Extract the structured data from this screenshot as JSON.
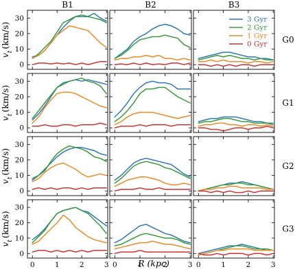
{
  "chart_data": {
    "type": "line",
    "layout": "grid",
    "column_titles": [
      "B1",
      "B2",
      "B3"
    ],
    "row_labels": [
      "G0",
      "G1",
      "G2",
      "G3"
    ],
    "xlabel": "R (kpc)",
    "ylabel": "v_t (km/s)",
    "xlim": [
      -0.2,
      3.05
    ],
    "ylim": [
      -3,
      35
    ],
    "xticks": [
      0,
      1,
      2,
      3
    ],
    "yticks": [
      0,
      10,
      20,
      30
    ],
    "legend": {
      "placement": "top-right of panel B3/G0",
      "entries": [
        "3 Gyr",
        "2 Gyr",
        "1 Gyr",
        "0 Gyr"
      ]
    },
    "series_colors": {
      "3 Gyr": "#2f78b8",
      "2 Gyr": "#3a9b3a",
      "1 Gyr": "#f08a24",
      "0 Gyr": "#d3302f"
    },
    "x": [
      0.0,
      0.25,
      0.5,
      0.75,
      1.0,
      1.25,
      1.5,
      1.75,
      2.0,
      2.25,
      2.5,
      2.75,
      3.0
    ],
    "panels": [
      {
        "row": "G0",
        "col": "B1",
        "series": [
          {
            "name": "3 Gyr",
            "values": [
              5,
              6,
              9,
              14,
              19,
              24,
              28,
              31,
              31,
              31,
              33,
              30,
              28
            ]
          },
          {
            "name": "2 Gyr",
            "values": [
              4,
              7,
              11,
              15,
              21,
              27,
              29,
              31,
              32,
              31,
              30,
              29,
              27
            ]
          },
          {
            "name": "1 Gyr",
            "values": [
              4,
              6,
              9,
              14,
              19,
              22,
              25,
              24,
              23,
              22,
              18,
              14,
              11
            ]
          },
          {
            "name": "0 Gyr",
            "values": [
              0,
              1,
              1,
              0.5,
              1,
              0.5,
              1,
              0,
              1,
              0,
              1,
              2,
              2
            ]
          }
        ]
      },
      {
        "row": "G0",
        "col": "B2",
        "series": [
          {
            "name": "3 Gyr",
            "values": [
              4,
              7,
              10,
              15,
              18,
              20,
              23,
              25,
              26,
              25,
              23,
              20,
              19
            ]
          },
          {
            "name": "2 Gyr",
            "values": [
              4,
              6,
              9,
              13,
              16,
              17,
              18,
              18,
              19,
              18,
              17,
              13,
              11
            ]
          },
          {
            "name": "1 Gyr",
            "values": [
              3,
              4,
              4,
              5,
              5,
              6,
              5,
              6,
              4,
              4,
              3,
              4,
              3
            ]
          },
          {
            "name": "0 Gyr",
            "values": [
              0,
              0.5,
              0,
              1,
              0,
              1,
              0,
              0.5,
              0,
              1,
              1,
              0,
              1
            ]
          }
        ]
      },
      {
        "row": "G0",
        "col": "B3",
        "series": [
          {
            "name": "3 Gyr",
            "values": [
              4,
              5,
              6,
              7,
              8,
              8,
              7,
              6,
              5,
              5,
              4,
              4,
              3
            ]
          },
          {
            "name": "2 Gyr",
            "values": [
              3,
              4,
              5,
              6,
              5,
              6,
              5,
              4,
              4,
              3,
              4,
              3,
              3
            ]
          },
          {
            "name": "1 Gyr",
            "values": [
              2,
              2,
              3,
              2,
              3,
              2,
              2,
              2,
              1,
              2,
              2,
              1,
              2
            ]
          },
          {
            "name": "0 Gyr",
            "values": [
              0,
              0,
              -1,
              0,
              -1,
              0,
              -1,
              0,
              0,
              -1,
              0,
              0,
              0
            ]
          }
        ]
      },
      {
        "row": "G1",
        "col": "B1",
        "series": [
          {
            "name": "3 Gyr",
            "values": [
              5,
              9,
              14,
              20,
              26,
              29,
              30,
              31,
              30,
              31,
              30,
              29,
              28
            ]
          },
          {
            "name": "2 Gyr",
            "values": [
              6,
              11,
              16,
              21,
              26,
              28,
              30,
              31,
              32,
              30,
              29,
              27,
              22
            ]
          },
          {
            "name": "1 Gyr",
            "values": [
              3,
              7,
              13,
              18,
              22,
              23,
              23,
              22,
              20,
              18,
              16,
              14,
              13
            ]
          },
          {
            "name": "0 Gyr",
            "values": [
              1,
              1,
              2,
              1,
              1,
              2,
              2,
              1,
              2,
              2,
              2,
              3,
              2
            ]
          }
        ]
      },
      {
        "row": "G1",
        "col": "B2",
        "series": [
          {
            "name": "3 Gyr",
            "values": [
              7,
              11,
              16,
              22,
              26,
              29,
              30,
              29,
              29,
              28,
              25,
              25,
              25
            ]
          },
          {
            "name": "2 Gyr",
            "values": [
              4,
              7,
              11,
              16,
              22,
              25,
              25,
              26,
              26,
              23,
              20,
              18,
              16
            ]
          },
          {
            "name": "1 Gyr",
            "values": [
              2,
              4,
              7,
              9,
              10,
              10,
              10,
              9,
              8,
              7,
              6,
              7,
              8
            ]
          },
          {
            "name": "0 Gyr",
            "values": [
              0,
              1,
              1,
              1,
              2,
              1,
              2,
              2,
              2,
              1,
              2,
              2,
              2
            ]
          }
        ]
      },
      {
        "row": "G1",
        "col": "B3",
        "series": [
          {
            "name": "3 Gyr",
            "values": [
              4,
              5,
              6,
              6,
              7,
              7,
              7,
              6,
              5,
              4,
              4,
              3,
              3
            ]
          },
          {
            "name": "2 Gyr",
            "values": [
              3,
              4,
              4,
              5,
              6,
              6,
              5,
              4,
              4,
              3,
              3,
              3,
              2
            ]
          },
          {
            "name": "1 Gyr",
            "values": [
              1,
              2,
              2,
              3,
              3,
              2,
              2,
              1,
              2,
              2,
              1,
              2,
              1
            ]
          },
          {
            "name": "0 Gyr",
            "values": [
              0,
              0,
              -1,
              -1,
              -2,
              -1,
              0,
              0,
              -1,
              0,
              0,
              1,
              0
            ]
          }
        ]
      },
      {
        "row": "G2",
        "col": "B1",
        "series": [
          {
            "name": "3 Gyr",
            "values": [
              7,
              10,
              14,
              18,
              22,
              25,
              27,
              28,
              28,
              27,
              26,
              24,
              23
            ]
          },
          {
            "name": "2 Gyr",
            "values": [
              8,
              10,
              13,
              19,
              24,
              27,
              29,
              28,
              27,
              25,
              22,
              21,
              19
            ]
          },
          {
            "name": "1 Gyr",
            "values": [
              6,
              8,
              12,
              15,
              17,
              18,
              16,
              14,
              11,
              9,
              10,
              11,
              10
            ]
          },
          {
            "name": "0 Gyr",
            "values": [
              1,
              2,
              1,
              2,
              1,
              2,
              2,
              1,
              2,
              1,
              2,
              2,
              2
            ]
          }
        ]
      },
      {
        "row": "G2",
        "col": "B2",
        "series": [
          {
            "name": "3 Gyr",
            "values": [
              7,
              10,
              14,
              18,
              20,
              21,
              20,
              19,
              18,
              17,
              14,
              11,
              9
            ]
          },
          {
            "name": "2 Gyr",
            "values": [
              5,
              8,
              12,
              16,
              18,
              19,
              18,
              17,
              15,
              14,
              12,
              10,
              8
            ]
          },
          {
            "name": "1 Gyr",
            "values": [
              3,
              5,
              7,
              8,
              9,
              9,
              8,
              7,
              5,
              4,
              4,
              5,
              4
            ]
          },
          {
            "name": "0 Gyr",
            "values": [
              0,
              1,
              1,
              1,
              2,
              1,
              1,
              2,
              1,
              1,
              1,
              1,
              1
            ]
          }
        ]
      },
      {
        "row": "G2",
        "col": "B3",
        "series": [
          {
            "name": "3 Gyr",
            "values": [
              0,
              1,
              2,
              3,
              4,
              5,
              5,
              6,
              5,
              4,
              3,
              2,
              1
            ]
          },
          {
            "name": "2 Gyr",
            "values": [
              0,
              1,
              2,
              3,
              4,
              4,
              5,
              5,
              4,
              4,
              3,
              2,
              1
            ]
          },
          {
            "name": "1 Gyr",
            "values": [
              0,
              1,
              1,
              2,
              2,
              3,
              3,
              2,
              2,
              2,
              2,
              1,
              1
            ]
          },
          {
            "name": "0 Gyr",
            "values": [
              0,
              0,
              -1,
              0,
              -1,
              0,
              -1,
              -1,
              0,
              -1,
              0,
              0,
              0
            ]
          }
        ]
      },
      {
        "row": "G3",
        "col": "B1",
        "series": [
          {
            "name": "3 Gyr",
            "values": [
              9,
              12,
              16,
              21,
              26,
              28,
              29,
              30,
              28,
              27,
              24,
              21,
              18
            ]
          },
          {
            "name": "2 Gyr",
            "values": [
              7,
              11,
              15,
              21,
              26,
              28,
              29,
              30,
              28,
              26,
              22,
              18,
              13
            ]
          },
          {
            "name": "1 Gyr",
            "values": [
              6,
              8,
              12,
              16,
              20,
              25,
              22,
              17,
              14,
              11,
              9,
              8,
              7
            ]
          },
          {
            "name": "0 Gyr",
            "values": [
              1,
              2,
              2,
              1,
              2,
              1,
              2,
              1,
              2,
              1,
              2,
              2,
              2
            ]
          }
        ]
      },
      {
        "row": "G3",
        "col": "B2",
        "series": [
          {
            "name": "3 Gyr",
            "values": [
              7,
              9,
              12,
              15,
              18,
              19,
              17,
              15,
              13,
              12,
              10,
              8,
              7
            ]
          },
          {
            "name": "2 Gyr",
            "values": [
              5,
              6,
              8,
              10,
              12,
              13,
              12,
              11,
              10,
              10,
              9,
              7,
              6
            ]
          },
          {
            "name": "1 Gyr",
            "values": [
              3,
              4,
              5,
              6,
              7,
              7,
              8,
              7,
              6,
              6,
              5,
              4,
              3
            ]
          },
          {
            "name": "0 Gyr",
            "values": [
              0,
              1,
              1,
              1,
              2,
              1,
              1,
              1,
              1,
              1,
              1,
              1,
              1
            ]
          }
        ]
      },
      {
        "row": "G3",
        "col": "B3",
        "series": [
          {
            "name": "3 Gyr",
            "values": [
              0,
              1,
              2,
              3,
              4,
              5,
              5,
              6,
              5,
              4,
              3,
              2,
              2
            ]
          },
          {
            "name": "2 Gyr",
            "values": [
              -1,
              0,
              1,
              2,
              3,
              4,
              5,
              5,
              4,
              3,
              3,
              3,
              2
            ]
          },
          {
            "name": "1 Gyr",
            "values": [
              -1,
              0,
              1,
              2,
              2,
              3,
              3,
              3,
              3,
              2,
              2,
              2,
              2
            ]
          },
          {
            "name": "0 Gyr",
            "values": [
              0,
              -1,
              -1,
              0,
              -1,
              0,
              0,
              0,
              -1,
              0,
              0,
              -1,
              0
            ]
          }
        ]
      }
    ]
  }
}
